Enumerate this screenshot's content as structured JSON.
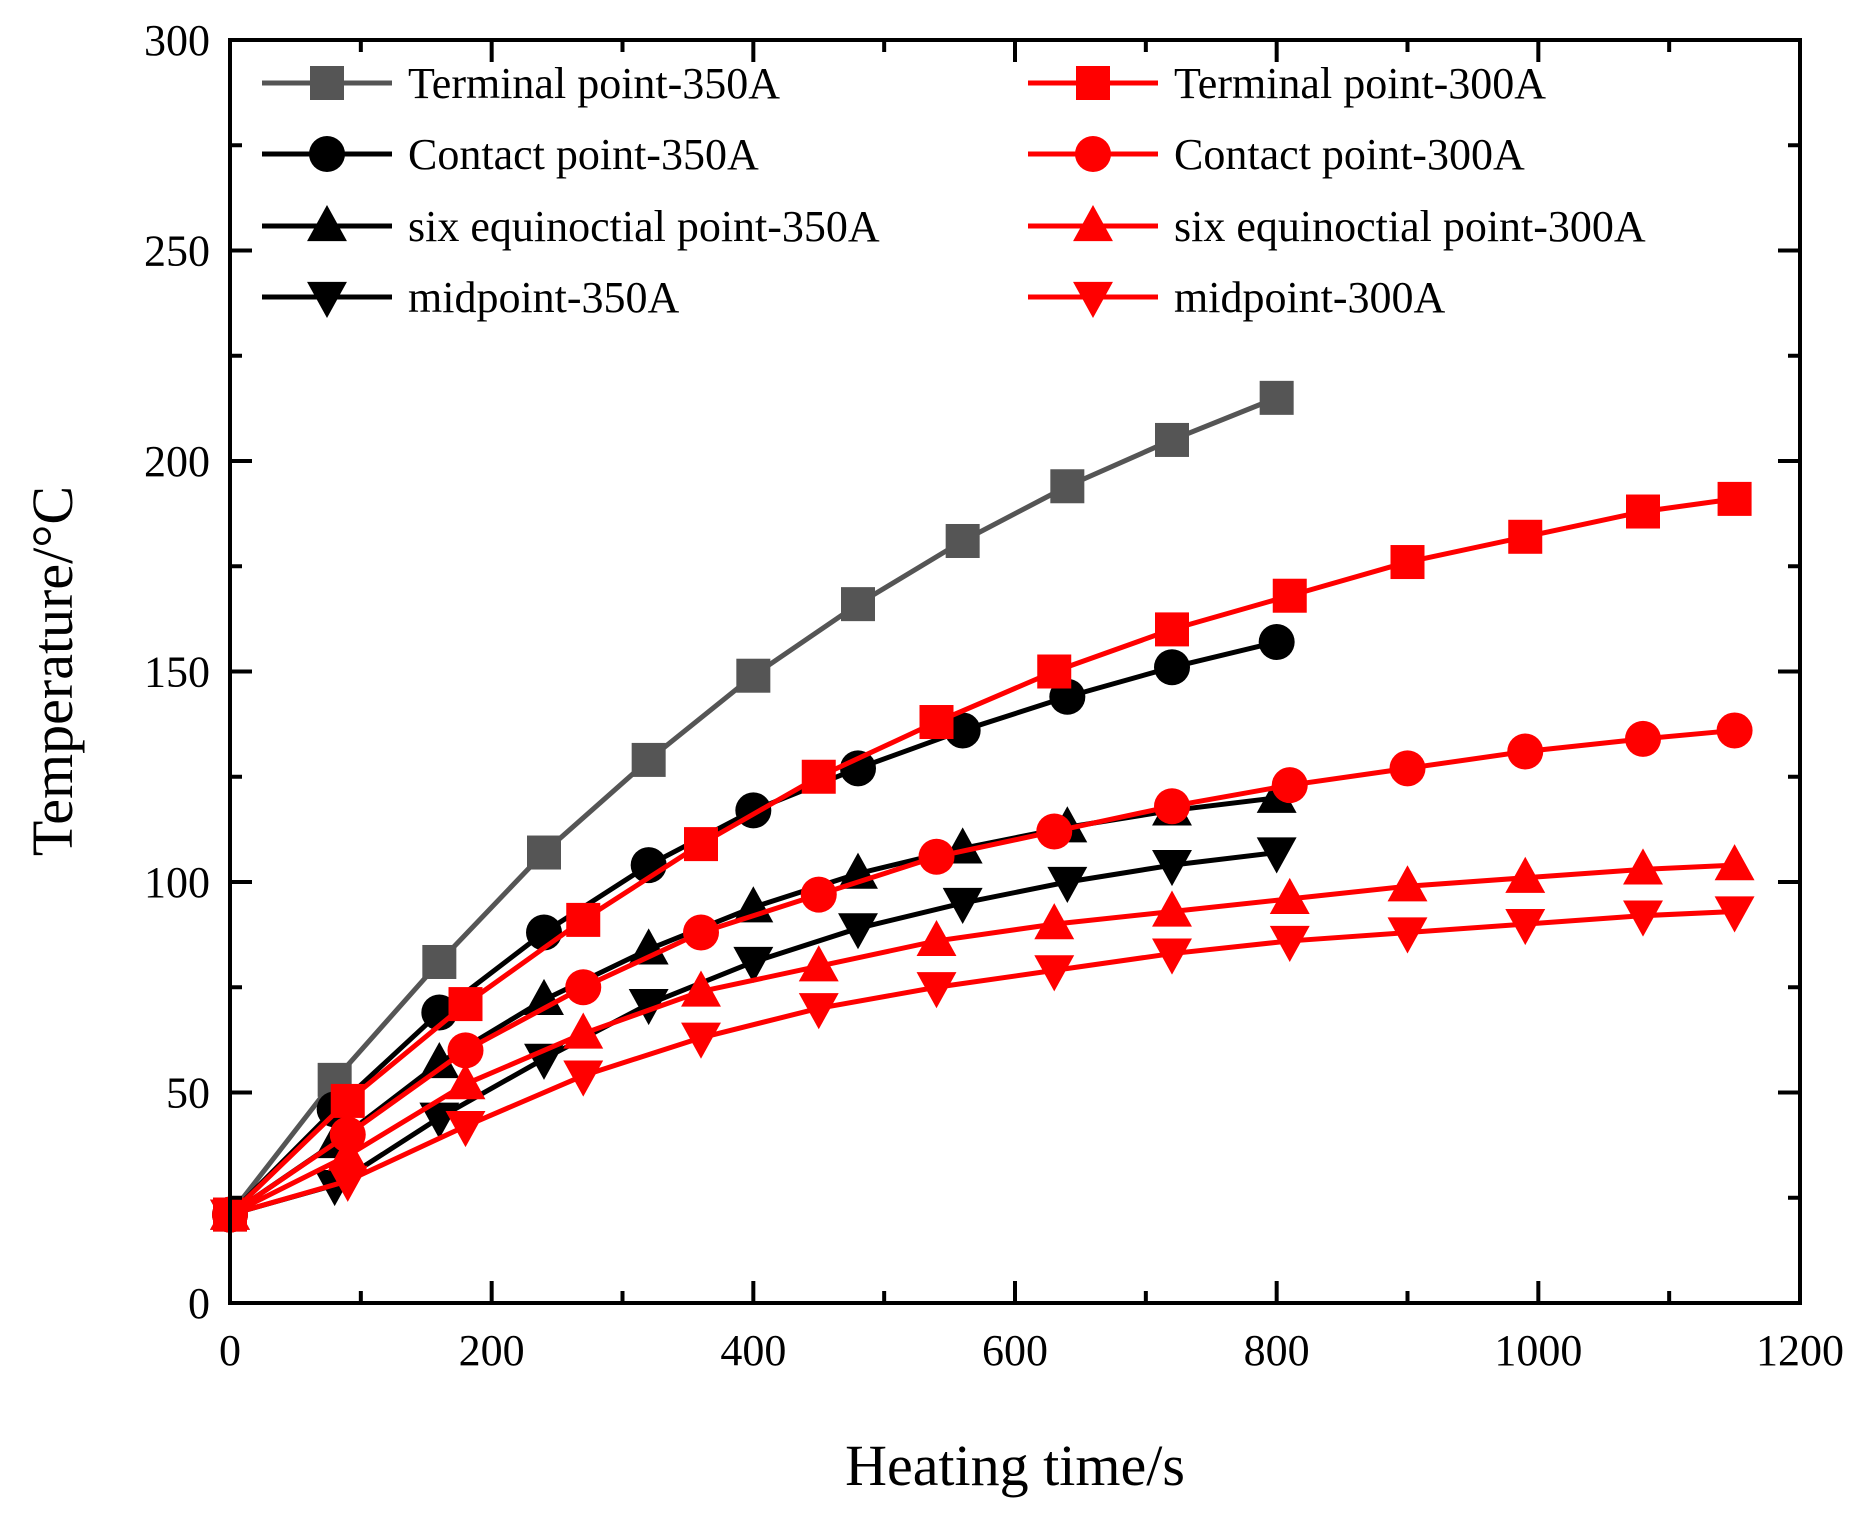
{
  "chart_data": {
    "type": "line",
    "title": "",
    "xlabel": "Heating time/s",
    "ylabel": "Temperature/°C",
    "xlim": [
      0,
      1200
    ],
    "ylim": [
      0,
      300
    ],
    "xticks": [
      0,
      200,
      400,
      600,
      800,
      1000,
      1200
    ],
    "yticks": [
      0,
      50,
      100,
      150,
      200,
      250,
      300
    ],
    "grid": false,
    "legend_position": "top-left, two columns",
    "series": [
      {
        "name": "Terminal point-350A",
        "color": "#555555",
        "marker": "square",
        "x": [
          0,
          80,
          160,
          240,
          320,
          400,
          480,
          560,
          640,
          720,
          800
        ],
        "y": [
          21,
          53,
          81,
          107,
          129,
          149,
          166,
          181,
          194,
          205,
          215
        ]
      },
      {
        "name": "Contact point-350A",
        "color": "#000000",
        "marker": "circle",
        "x": [
          0,
          80,
          160,
          240,
          320,
          400,
          480,
          560,
          640,
          720,
          800
        ],
        "y": [
          21,
          46,
          69,
          88,
          104,
          117,
          127,
          136,
          144,
          151,
          157
        ]
      },
      {
        "name": "six equinoctial point-350A",
        "color": "#000000",
        "marker": "triangle-up",
        "x": [
          0,
          80,
          160,
          240,
          320,
          400,
          480,
          560,
          640,
          720,
          800
        ],
        "y": [
          21,
          38,
          57,
          72,
          84,
          94,
          102,
          108,
          113,
          117,
          120
        ]
      },
      {
        "name": "midpoint-350A",
        "color": "#000000",
        "marker": "triangle-down",
        "x": [
          0,
          80,
          160,
          240,
          320,
          400,
          480,
          560,
          640,
          720,
          800
        ],
        "y": [
          21,
          28,
          44,
          58,
          71,
          81,
          89,
          95,
          100,
          104,
          107
        ]
      },
      {
        "name": "Terminal point-300A",
        "color": "#ff0000",
        "marker": "square",
        "x": [
          0,
          90,
          180,
          270,
          360,
          450,
          540,
          630,
          720,
          810,
          900,
          990,
          1080,
          1150
        ],
        "y": [
          21,
          48,
          71,
          91,
          109,
          125,
          138,
          150,
          160,
          168,
          176,
          182,
          188,
          191
        ]
      },
      {
        "name": "Contact point-300A",
        "color": "#ff0000",
        "marker": "circle",
        "x": [
          0,
          90,
          180,
          270,
          360,
          450,
          540,
          630,
          720,
          810,
          900,
          990,
          1080,
          1150
        ],
        "y": [
          21,
          40,
          60,
          75,
          88,
          97,
          106,
          112,
          118,
          123,
          127,
          131,
          134,
          136
        ]
      },
      {
        "name": "six equinoctial point-300A",
        "color": "#ff0000",
        "marker": "triangle-up",
        "x": [
          0,
          90,
          180,
          270,
          360,
          450,
          540,
          630,
          720,
          810,
          900,
          990,
          1080,
          1150
        ],
        "y": [
          21,
          35,
          52,
          64,
          74,
          80,
          86,
          90,
          93,
          96,
          99,
          101,
          103,
          104
        ]
      },
      {
        "name": "midpoint-300A",
        "color": "#ff0000",
        "marker": "triangle-down",
        "x": [
          0,
          90,
          180,
          270,
          360,
          450,
          540,
          630,
          720,
          810,
          900,
          990,
          1080,
          1150
        ],
        "y": [
          21,
          29,
          42,
          54,
          63,
          70,
          75,
          79,
          83,
          86,
          88,
          90,
          92,
          93
        ]
      }
    ]
  }
}
